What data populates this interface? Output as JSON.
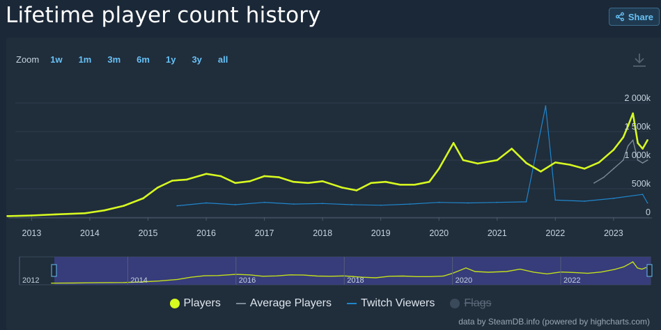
{
  "header": {
    "title": "Lifetime player count history",
    "share_label": "Share"
  },
  "zoom": {
    "label": "Zoom",
    "buttons": [
      "1w",
      "1m",
      "3m",
      "6m",
      "1y",
      "3y",
      "all"
    ]
  },
  "chart_data": {
    "type": "line",
    "title": "",
    "xlabel": "",
    "ylabel": "",
    "ylim": [
      0,
      2000000
    ],
    "y_ticks": [
      "0",
      "500k",
      "1 000k",
      "1 500k",
      "2 000k"
    ],
    "x_ticks": [
      "2013",
      "2014",
      "2015",
      "2016",
      "2017",
      "2018",
      "2019",
      "2020",
      "2021",
      "2022",
      "2023"
    ],
    "grid": true,
    "legend_position": "bottom-center",
    "series": [
      {
        "name": "Players",
        "color": "#d7fa20",
        "x": [
          "2012-08",
          "2013-01",
          "2013-06",
          "2013-12",
          "2014-04",
          "2014-08",
          "2014-12",
          "2015-03",
          "2015-06",
          "2015-09",
          "2016-01",
          "2016-04",
          "2016-07",
          "2016-10",
          "2017-01",
          "2017-04",
          "2017-07",
          "2017-10",
          "2018-01",
          "2018-05",
          "2018-08",
          "2018-11",
          "2019-02",
          "2019-05",
          "2019-08",
          "2019-11",
          "2020-01",
          "2020-04",
          "2020-06",
          "2020-09",
          "2021-01",
          "2021-04",
          "2021-07",
          "2021-10",
          "2022-01",
          "2022-04",
          "2022-07",
          "2022-10",
          "2023-01",
          "2023-03",
          "2023-04",
          "2023-05",
          "2023-06",
          "2023-07",
          "2023-08"
        ],
        "values": [
          20000,
          30000,
          50000,
          70000,
          120000,
          200000,
          330000,
          520000,
          640000,
          660000,
          760000,
          720000,
          600000,
          630000,
          720000,
          700000,
          620000,
          600000,
          630000,
          520000,
          470000,
          600000,
          620000,
          570000,
          570000,
          620000,
          850000,
          1300000,
          1000000,
          940000,
          1000000,
          1200000,
          950000,
          800000,
          960000,
          920000,
          850000,
          960000,
          1180000,
          1400000,
          1600000,
          1820000,
          1300000,
          1200000,
          1350000
        ]
      },
      {
        "name": "Average Players",
        "color": "#7b8a96",
        "x": [
          "2022-09",
          "2022-11",
          "2023-01",
          "2023-03",
          "2023-04",
          "2023-05",
          "2023-06",
          "2023-07",
          "2023-08"
        ],
        "values": [
          600000,
          700000,
          850000,
          1000000,
          1250000,
          1350000,
          1000000,
          950000,
          1000000
        ]
      },
      {
        "name": "Twitch Viewers",
        "color": "#1f87cd",
        "x": [
          "2015-07",
          "2016-01",
          "2016-07",
          "2017-01",
          "2017-07",
          "2018-01",
          "2018-07",
          "2019-01",
          "2019-07",
          "2020-01",
          "2020-07",
          "2021-01",
          "2021-07",
          "2021-11",
          "2022-01",
          "2022-07",
          "2023-01",
          "2023-07",
          "2023-08"
        ],
        "values": [
          200000,
          250000,
          220000,
          260000,
          230000,
          240000,
          220000,
          210000,
          230000,
          260000,
          250000,
          260000,
          270000,
          1950000,
          300000,
          280000,
          330000,
          400000,
          250000
        ]
      },
      {
        "name": "Flags",
        "color": "#3b4a5a",
        "visible": false
      }
    ],
    "navigator_labels": [
      "2012",
      "2014",
      "2016",
      "2018",
      "2020",
      "2022"
    ]
  },
  "credits": "data by SteamDB.info (powered by highcharts.com)"
}
